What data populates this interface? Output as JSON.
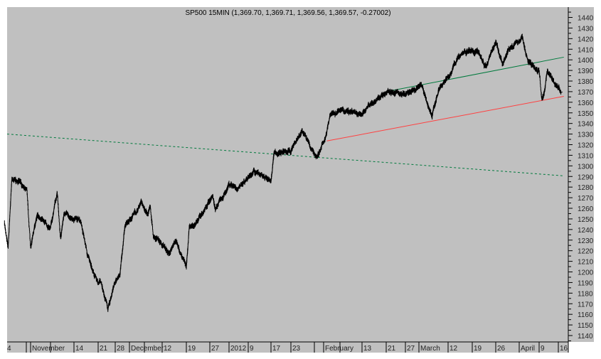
{
  "chart_data": {
    "type": "line",
    "title": "SP500 15MIN (1,369.70, 1,369.71, 1,369.56, 1,369.57, -0.27002)",
    "symbol": "SP500",
    "interval": "15MIN",
    "last_values": {
      "open": 1369.7,
      "high": 1369.71,
      "low": 1369.56,
      "close": 1369.57,
      "change": -0.27002
    },
    "xlabel": "",
    "ylabel": "",
    "ylim": [
      1135,
      1450
    ],
    "y_ticks": [
      1140,
      1150,
      1160,
      1170,
      1180,
      1190,
      1200,
      1210,
      1220,
      1230,
      1240,
      1250,
      1260,
      1270,
      1280,
      1290,
      1300,
      1310,
      1320,
      1330,
      1340,
      1350,
      1360,
      1370,
      1380,
      1390,
      1400,
      1410,
      1420,
      1430,
      1440
    ],
    "y_axis_position": "right",
    "grid": false,
    "background_color": "#c0c0c0",
    "x_ticks": [
      {
        "label": "4",
        "date": "2011-10-24"
      },
      {
        "label": "November",
        "date": "2011-11-01"
      },
      {
        "label": "14",
        "date": "2011-11-14"
      },
      {
        "label": "21",
        "date": "2011-11-21"
      },
      {
        "label": "28",
        "date": "2011-11-28"
      },
      {
        "label": "December",
        "date": "2011-12-01"
      },
      {
        "label": "12",
        "date": "2011-12-12"
      },
      {
        "label": "19",
        "date": "2011-12-19"
      },
      {
        "label": "27",
        "date": "2011-12-27"
      },
      {
        "label": "2012",
        "date": "2012-01-03"
      },
      {
        "label": "9",
        "date": "2012-01-09"
      },
      {
        "label": "17",
        "date": "2012-01-17"
      },
      {
        "label": "23",
        "date": "2012-01-23"
      },
      {
        "label": "February",
        "date": "2012-02-01"
      },
      {
        "label": "13",
        "date": "2012-02-13"
      },
      {
        "label": "21",
        "date": "2012-02-21"
      },
      {
        "label": "27",
        "date": "2012-02-27"
      },
      {
        "label": "March",
        "date": "2012-03-01"
      },
      {
        "label": "12",
        "date": "2012-03-12"
      },
      {
        "label": "19",
        "date": "2012-03-19"
      },
      {
        "label": "26",
        "date": "2012-03-26"
      },
      {
        "label": "April",
        "date": "2012-04-02"
      },
      {
        "label": "9",
        "date": "2012-04-09"
      },
      {
        "label": "16",
        "date": "2012-04-16"
      }
    ],
    "series": [
      {
        "color": "#000000",
        "points": [
          [
            "2011-10-25",
            1245
          ],
          [
            "2011-10-26",
            1225
          ],
          [
            "2011-10-27",
            1289
          ],
          [
            "2011-10-31",
            1279
          ],
          [
            "2011-11-01",
            1222
          ],
          [
            "2011-11-03",
            1255
          ],
          [
            "2011-11-07",
            1242
          ],
          [
            "2011-11-09",
            1275
          ],
          [
            "2011-11-10",
            1232
          ],
          [
            "2011-11-11",
            1255
          ],
          [
            "2011-11-16",
            1248
          ],
          [
            "2011-11-18",
            1215
          ],
          [
            "2011-11-21",
            1188
          ],
          [
            "2011-11-22",
            1191
          ],
          [
            "2011-11-25",
            1165
          ],
          [
            "2011-11-28",
            1191
          ],
          [
            "2011-11-29",
            1198
          ],
          [
            "2011-11-30",
            1242
          ],
          [
            "2011-12-05",
            1265
          ],
          [
            "2011-12-07",
            1255
          ],
          [
            "2011-12-08",
            1262
          ],
          [
            "2011-12-09",
            1235
          ],
          [
            "2011-12-14",
            1218
          ],
          [
            "2011-12-16",
            1228
          ],
          [
            "2011-12-19",
            1205
          ],
          [
            "2011-12-20",
            1242
          ],
          [
            "2011-12-22",
            1245
          ],
          [
            "2011-12-28",
            1272
          ],
          [
            "2011-12-29",
            1259
          ],
          [
            "2012-01-03",
            1282
          ],
          [
            "2012-01-06",
            1279
          ],
          [
            "2012-01-11",
            1295
          ],
          [
            "2012-01-13",
            1292
          ],
          [
            "2012-01-17",
            1285
          ],
          [
            "2012-01-18",
            1312
          ],
          [
            "2012-01-23",
            1315
          ],
          [
            "2012-01-26",
            1332
          ],
          [
            "2012-01-30",
            1309
          ],
          [
            "2012-01-31",
            1315
          ],
          [
            "2012-02-02",
            1332
          ],
          [
            "2012-02-03",
            1349
          ],
          [
            "2012-02-07",
            1352
          ],
          [
            "2012-02-13",
            1349
          ],
          [
            "2012-02-16",
            1359
          ],
          [
            "2012-02-22",
            1370
          ],
          [
            "2012-02-27",
            1368
          ],
          [
            "2012-03-02",
            1376
          ],
          [
            "2012-03-06",
            1346
          ],
          [
            "2012-03-08",
            1369
          ],
          [
            "2012-03-13",
            1389
          ],
          [
            "2012-03-15",
            1404
          ],
          [
            "2012-03-19",
            1409
          ],
          [
            "2012-03-21",
            1406
          ],
          [
            "2012-03-23",
            1392
          ],
          [
            "2012-03-26",
            1416
          ],
          [
            "2012-03-28",
            1397
          ],
          [
            "2012-03-30",
            1410
          ],
          [
            "2012-04-03",
            1421
          ],
          [
            "2012-04-05",
            1399
          ],
          [
            "2012-04-09",
            1389
          ],
          [
            "2012-04-10",
            1362
          ],
          [
            "2012-04-11",
            1372
          ],
          [
            "2012-04-12",
            1389
          ],
          [
            "2012-04-17",
            1369.57
          ]
        ]
      }
    ],
    "trendlines": [
      {
        "style": "dashed",
        "color": "#007a3d",
        "from": [
          "2011-10-24",
          1330
        ],
        "to": [
          "2012-04-18",
          1290.6
        ]
      },
      {
        "style": "solid",
        "color": "#007a3d",
        "from": [
          "2012-02-21",
          1370
        ],
        "to": [
          "2012-04-18",
          1402.5
        ]
      },
      {
        "style": "solid",
        "color": "#ff4040",
        "from": [
          "2012-02-02",
          1323.5
        ],
        "to": [
          "2012-04-18",
          1365.6
        ]
      }
    ]
  }
}
